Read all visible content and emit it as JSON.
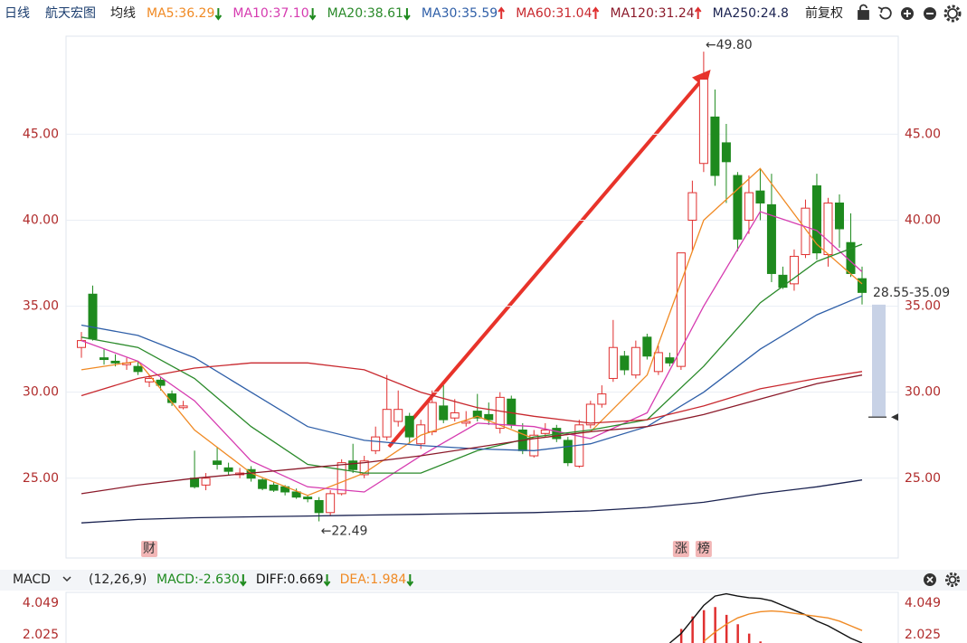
{
  "header": {
    "period": "日线",
    "name": "航天宏图",
    "ma_label": "均线",
    "adjust": "前复权"
  },
  "chart_data": [
    {
      "type": "candlestick",
      "up_color": "#e03030",
      "down_color": "#1e8a1e",
      "candles": {
        "open": [
          32.6,
          35.7,
          32.0,
          31.8,
          31.6,
          31.5,
          30.6,
          30.7,
          29.9,
          29.1,
          25.0,
          24.6,
          26.0,
          25.6,
          25.2,
          25.5,
          24.9,
          24.6,
          24.5,
          24.2,
          23.9,
          23.7,
          23.0,
          24.1,
          26.0,
          25.2,
          26.6,
          27.4,
          28.3,
          28.6,
          27.0,
          27.7,
          29.2,
          28.5,
          28.2,
          28.9,
          28.7,
          27.9,
          29.6,
          27.8,
          26.3,
          27.6,
          27.9,
          27.2,
          25.7,
          28.1,
          29.3,
          30.8,
          32.1,
          31.0,
          33.2,
          31.2,
          32.0,
          31.5,
          40.0,
          43.3,
          46.0,
          44.5,
          42.6,
          40.0,
          41.7,
          40.9,
          36.8,
          36.3,
          38.0,
          42.0,
          38.0,
          41.0,
          38.7,
          36.6
        ],
        "close": [
          33.0,
          33.1,
          31.9,
          31.7,
          31.7,
          31.2,
          30.8,
          30.4,
          29.4,
          29.2,
          24.5,
          25.0,
          25.8,
          25.4,
          25.3,
          25.0,
          24.4,
          24.3,
          24.2,
          23.9,
          23.8,
          23.0,
          24.1,
          25.9,
          25.5,
          26.0,
          27.4,
          29.0,
          29.0,
          27.4,
          28.1,
          29.4,
          28.4,
          28.8,
          28.3,
          28.5,
          28.4,
          29.7,
          28.1,
          26.6,
          27.5,
          27.8,
          27.3,
          25.9,
          28.1,
          29.3,
          29.9,
          32.6,
          31.3,
          32.6,
          32.1,
          32.3,
          31.7,
          38.1,
          41.6,
          48.2,
          42.6,
          43.4,
          38.9,
          41.6,
          41.0,
          36.9,
          36.1,
          37.9,
          40.7,
          38.1,
          41.0,
          39.5,
          36.9,
          35.8
        ],
        "high": [
          33.5,
          36.2,
          32.5,
          32.2,
          32.0,
          31.8,
          31.0,
          30.9,
          30.1,
          29.5,
          26.6,
          25.3,
          26.8,
          25.9,
          25.6,
          25.7,
          25.0,
          24.8,
          24.6,
          24.4,
          24.0,
          23.9,
          24.3,
          26.1,
          27.0,
          26.3,
          28.0,
          31.0,
          30.1,
          28.8,
          28.4,
          30.1,
          30.4,
          29.6,
          28.9,
          29.9,
          29.4,
          30.0,
          29.8,
          28.2,
          27.8,
          28.2,
          28.1,
          27.4,
          28.4,
          29.5,
          30.4,
          34.2,
          32.4,
          33.0,
          33.4,
          32.7,
          32.3,
          38.1,
          42.3,
          49.8,
          47.6,
          45.6,
          42.8,
          42.6,
          43.0,
          42.7,
          37.3,
          38.3,
          41.2,
          42.7,
          41.3,
          41.5,
          40.4,
          37.3
        ],
        "low": [
          32.0,
          33.0,
          31.6,
          31.5,
          31.3,
          31.0,
          30.3,
          30.1,
          29.2,
          29.0,
          24.4,
          24.3,
          25.5,
          25.2,
          25.0,
          24.8,
          24.3,
          24.2,
          24.0,
          23.8,
          23.6,
          22.49,
          22.8,
          24.0,
          25.3,
          25.0,
          26.4,
          27.2,
          28.0,
          27.0,
          26.7,
          27.5,
          28.2,
          28.3,
          28.0,
          28.3,
          28.1,
          27.6,
          27.9,
          26.4,
          26.2,
          27.4,
          27.1,
          25.7,
          25.6,
          27.9,
          29.1,
          30.6,
          31.0,
          30.8,
          31.9,
          31.0,
          31.5,
          31.3,
          38.2,
          42.8,
          42.0,
          41.0,
          38.2,
          39.2,
          40.0,
          36.4,
          36.0,
          35.9,
          37.8,
          37.7,
          37.3,
          38.4,
          36.7,
          35.1
        ]
      },
      "series": [
        {
          "name": "MA5:36.29",
          "color": "#f08a24",
          "trend": "down",
          "x": [
            0,
            5,
            10,
            15,
            20,
            25,
            30,
            35,
            40,
            45,
            50,
            55,
            60,
            65,
            69
          ],
          "values": [
            31.3,
            31.8,
            27.8,
            25.3,
            24.0,
            25.3,
            27.5,
            28.6,
            27.3,
            27.7,
            31.0,
            40.0,
            43.0,
            38.6,
            36.3
          ]
        },
        {
          "name": "MA10:37.10",
          "color": "#d63bb0",
          "trend": "down",
          "x": [
            0,
            5,
            10,
            15,
            20,
            25,
            30,
            35,
            40,
            45,
            50,
            55,
            60,
            65,
            69
          ],
          "values": [
            33.0,
            31.8,
            29.5,
            26.0,
            24.5,
            24.2,
            26.3,
            28.2,
            28.0,
            27.3,
            28.8,
            35.0,
            40.5,
            39.4,
            37.0
          ]
        },
        {
          "name": "MA20:38.61",
          "color": "#2a8a2a",
          "trend": "down",
          "x": [
            0,
            5,
            10,
            15,
            20,
            25,
            30,
            35,
            40,
            45,
            50,
            55,
            60,
            65,
            69
          ],
          "values": [
            33.2,
            32.6,
            30.8,
            28.0,
            25.8,
            25.3,
            25.3,
            26.6,
            27.4,
            27.8,
            28.4,
            31.5,
            35.2,
            37.6,
            38.6
          ]
        },
        {
          "name": "MA30:35.59",
          "color": "#2f5fa8",
          "trend": "up",
          "x": [
            0,
            5,
            10,
            15,
            20,
            25,
            30,
            35,
            40,
            45,
            50,
            55,
            60,
            65,
            69
          ],
          "values": [
            33.9,
            33.3,
            32.0,
            30.0,
            28.0,
            27.2,
            26.9,
            26.7,
            26.6,
            27.0,
            28.0,
            30.0,
            32.5,
            34.5,
            35.6
          ]
        },
        {
          "name": "MA60:31.04",
          "color": "#c8282e",
          "trend": "up",
          "x": [
            0,
            5,
            10,
            15,
            20,
            25,
            30,
            35,
            40,
            45,
            50,
            55,
            60,
            65,
            69
          ],
          "values": [
            29.8,
            30.8,
            31.4,
            31.7,
            31.7,
            31.3,
            30.0,
            29.1,
            28.6,
            28.2,
            28.4,
            29.2,
            30.2,
            30.8,
            31.2
          ]
        },
        {
          "name": "MA120:31.24",
          "color": "#8b1a2a",
          "trend": "up",
          "x": [
            0,
            5,
            10,
            15,
            20,
            25,
            30,
            35,
            40,
            45,
            50,
            55,
            60,
            65,
            69
          ],
          "values": [
            24.1,
            24.6,
            25.0,
            25.3,
            25.6,
            25.9,
            26.3,
            26.8,
            27.3,
            27.7,
            28.0,
            28.7,
            29.6,
            30.5,
            31.0
          ]
        },
        {
          "name": "MA250:24.8",
          "color": "#1a2250",
          "x": [
            0,
            5,
            10,
            15,
            20,
            25,
            30,
            35,
            40,
            45,
            50,
            55,
            60,
            65,
            69
          ],
          "values": [
            22.4,
            22.6,
            22.7,
            22.75,
            22.8,
            22.85,
            22.9,
            22.95,
            23.0,
            23.1,
            23.3,
            23.6,
            24.1,
            24.5,
            24.9
          ]
        }
      ],
      "xlim": [
        -0.5,
        69.5
      ],
      "ylim": [
        20.36,
        50.7
      ],
      "yticks": [
        {
          "value": 25,
          "label": "25.00"
        },
        {
          "value": 30,
          "label": "30.00"
        },
        {
          "value": 35,
          "label": "35.00"
        },
        {
          "value": 40,
          "label": "40.00"
        },
        {
          "value": 45,
          "label": "45.00"
        }
      ],
      "grid": true,
      "high_label": "←49.80",
      "low_label": "←22.49",
      "range": {
        "label": "28.55-35.09",
        "low": 28.55,
        "high": 35.09,
        "color": "#c8d2e6"
      },
      "events": [
        {
          "label": "财",
          "x": 6
        },
        {
          "label": "涨",
          "x": 53
        },
        {
          "label": "榜",
          "x": 55
        }
      ]
    },
    {
      "type": "macd",
      "title": "MACD",
      "params": "(12,26,9)",
      "series": [
        {
          "name": "MACD:-2.630",
          "kind": "bar",
          "color": "#e03030",
          "label_color": "#1e8a1e",
          "trend": "down",
          "x": [
            53,
            54,
            55,
            56,
            57,
            58,
            59,
            60
          ],
          "values": [
            2.4,
            3.2,
            3.6,
            3.8,
            3.3,
            2.7,
            2.1,
            1.6
          ]
        },
        {
          "name": "DIFF:0.669",
          "kind": "line",
          "color": "#111111",
          "label_color": "#111111",
          "trend": "down",
          "x": [
            52,
            53,
            54,
            55,
            56,
            57,
            58,
            59,
            60,
            61,
            62,
            63,
            64,
            65,
            66,
            67,
            68,
            69
          ],
          "values": [
            1.5,
            2.1,
            3.0,
            3.9,
            4.5,
            4.65,
            4.5,
            4.4,
            4.35,
            4.2,
            3.9,
            3.6,
            3.3,
            2.9,
            2.6,
            2.2,
            1.8,
            1.5
          ]
        },
        {
          "name": "DEA:1.984",
          "kind": "line",
          "color": "#f08a24",
          "label_color": "#f08a24",
          "trend": "down",
          "x": [
            55,
            56,
            57,
            58,
            59,
            60,
            61,
            62,
            63,
            64,
            65,
            66,
            67,
            68,
            69
          ],
          "values": [
            1.6,
            2.2,
            2.7,
            3.1,
            3.35,
            3.5,
            3.55,
            3.5,
            3.4,
            3.3,
            3.2,
            3.1,
            2.9,
            2.6,
            2.3
          ]
        }
      ],
      "xlim": [
        -0.5,
        69.5
      ],
      "ylim": [
        1.5,
        4.74
      ],
      "yticks": [
        2.025,
        4.049
      ]
    }
  ]
}
